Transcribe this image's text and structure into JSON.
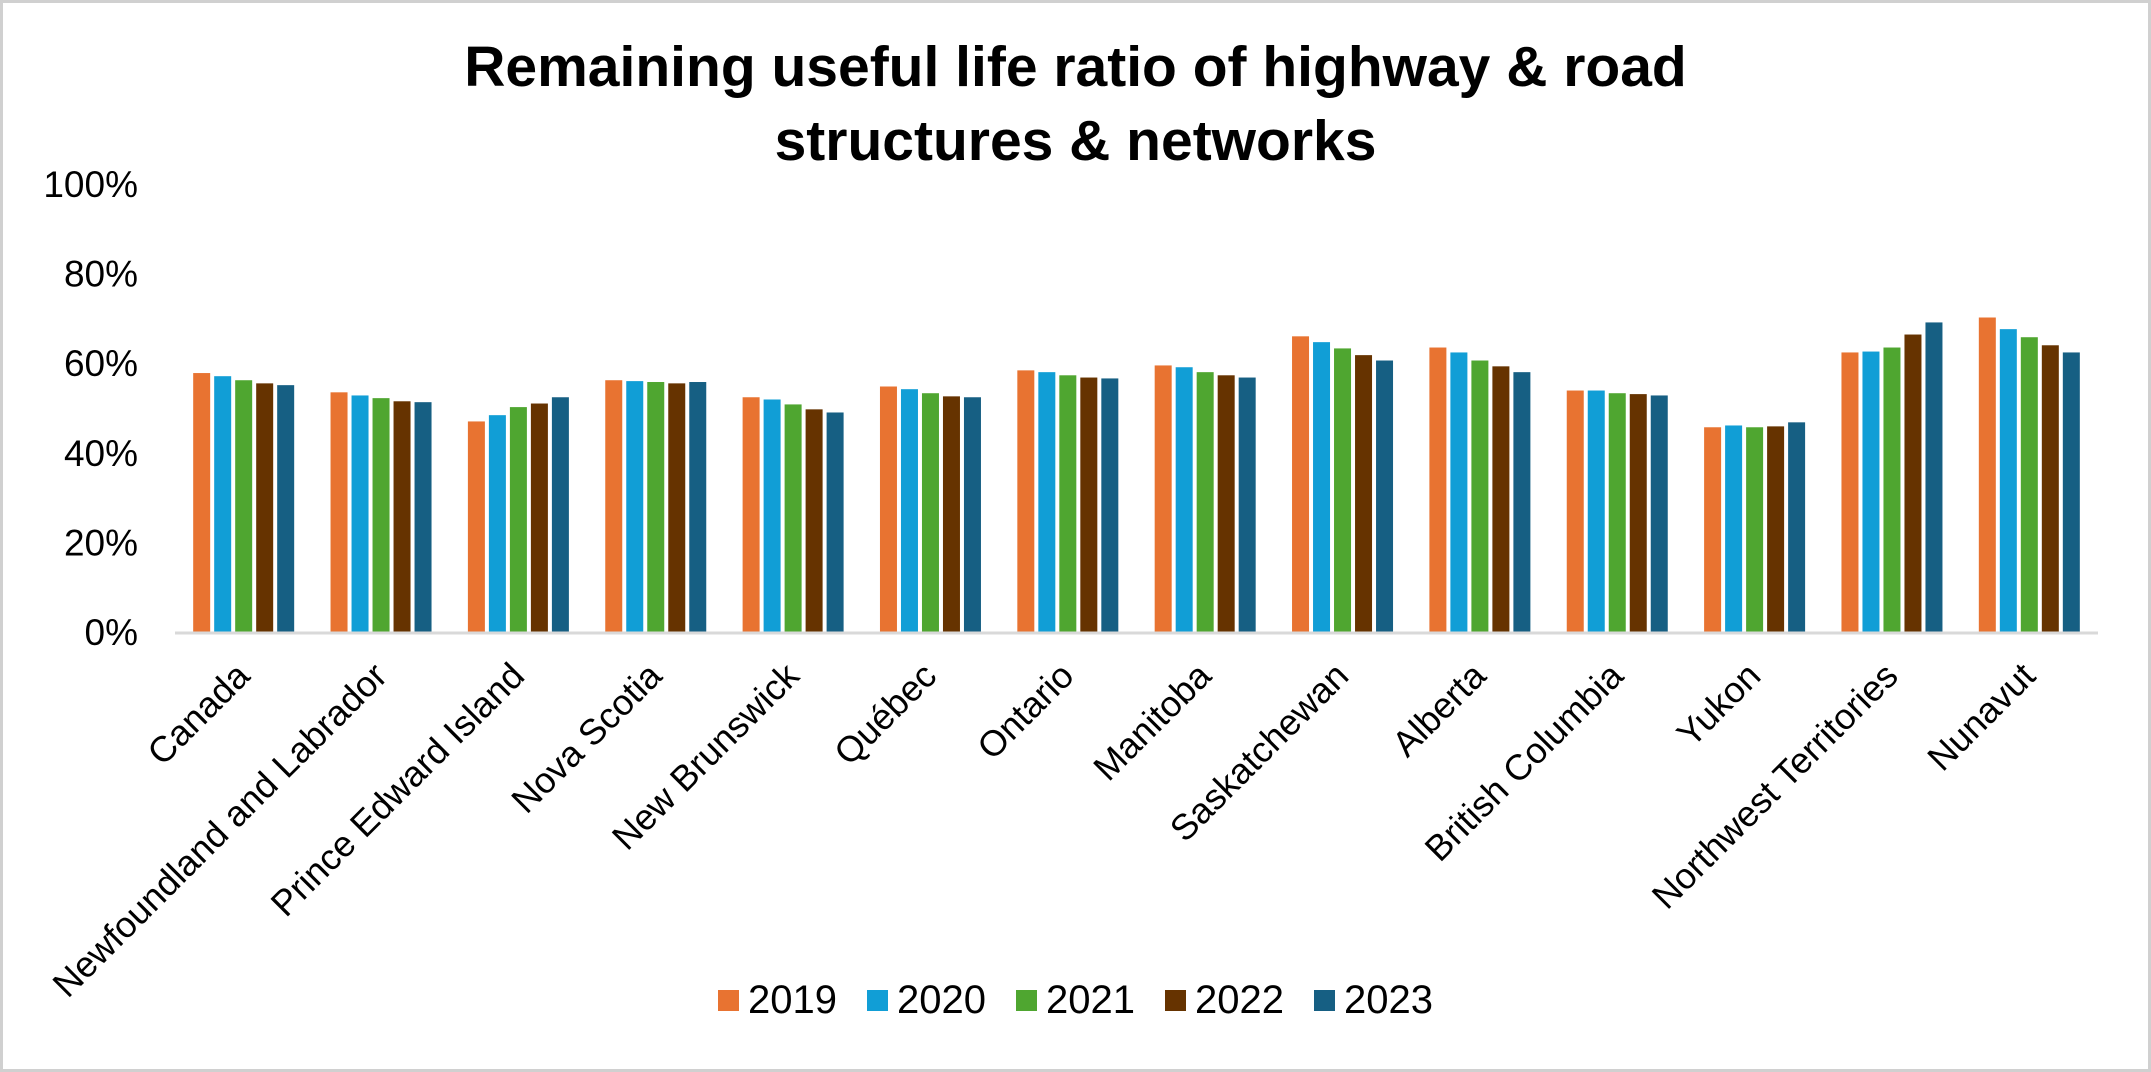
{
  "chart_data": {
    "type": "bar",
    "title": "Remaining useful life ratio of highway & road structures & networks",
    "title_lines": [
      "Remaining useful life ratio of highway & road",
      "structures & networks"
    ],
    "xlabel": "",
    "ylabel": "",
    "ylim": [
      0,
      100
    ],
    "y_unit": "%",
    "y_ticks": [
      "0%",
      "20%",
      "40%",
      "60%",
      "80%",
      "100%"
    ],
    "y_tick_values": [
      0,
      20,
      40,
      60,
      80,
      100
    ],
    "grid": false,
    "legend_position": "bottom",
    "categories": [
      "Canada",
      "Newfoundland and Labrador",
      "Prince Edward Island",
      "Nova Scotia",
      "New Brunswick",
      "Québec",
      "Ontario",
      "Manitoba",
      "Saskatchewan",
      "Alberta",
      "British Columbia",
      "Yukon",
      "Northwest Territories",
      "Nunavut"
    ],
    "series": [
      {
        "name": "2019",
        "color": "#E87331",
        "values": [
          57.8,
          53.5,
          47.0,
          56.2,
          52.4,
          54.8,
          58.4,
          59.5,
          66.0,
          63.5,
          53.9,
          45.7,
          62.4,
          70.2
        ]
      },
      {
        "name": "2020",
        "color": "#119ED6",
        "values": [
          57.1,
          52.8,
          48.4,
          56.0,
          51.9,
          54.2,
          58.0,
          59.1,
          64.7,
          62.4,
          53.9,
          46.1,
          62.6,
          67.6
        ]
      },
      {
        "name": "2021",
        "color": "#4FA630",
        "values": [
          56.2,
          52.2,
          50.2,
          55.8,
          50.8,
          53.3,
          57.3,
          58.0,
          63.3,
          60.6,
          53.3,
          45.7,
          63.5,
          65.8
        ]
      },
      {
        "name": "2022",
        "color": "#663300",
        "values": [
          55.5,
          51.5,
          51.0,
          55.5,
          49.7,
          52.6,
          56.8,
          57.3,
          61.8,
          59.3,
          53.1,
          45.9,
          66.4,
          64.0
        ]
      },
      {
        "name": "2023",
        "color": "#165F83",
        "values": [
          55.1,
          51.3,
          52.4,
          55.8,
          49.0,
          52.4,
          56.6,
          56.8,
          60.6,
          58.0,
          52.8,
          46.8,
          69.1,
          62.4
        ]
      }
    ]
  },
  "style": {
    "axis_color": "#D9D9D9",
    "frame_color": "#D0D0D0",
    "text_color": "#000000"
  }
}
